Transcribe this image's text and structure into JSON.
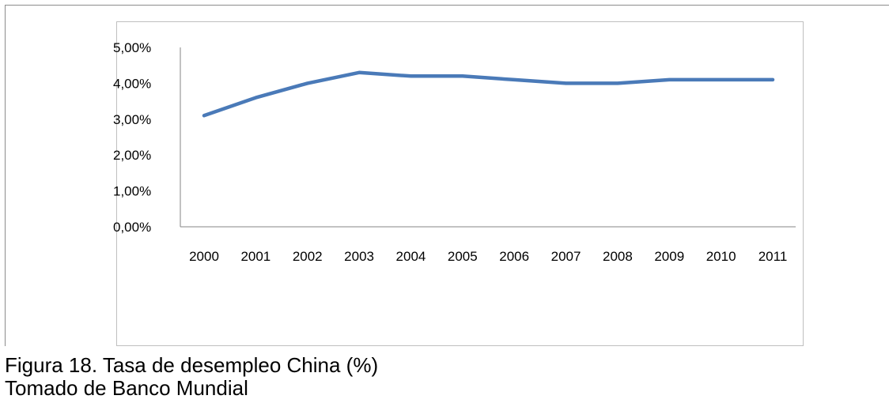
{
  "chart_data": {
    "type": "line",
    "categories": [
      "2000",
      "2001",
      "2002",
      "2003",
      "2004",
      "2005",
      "2006",
      "2007",
      "2008",
      "2009",
      "2010",
      "2011"
    ],
    "series": [
      {
        "values": [
          3.1,
          3.6,
          4.0,
          4.3,
          4.2,
          4.2,
          4.1,
          4.0,
          4.0,
          4.1,
          4.1,
          4.1
        ]
      }
    ],
    "ylim": [
      0,
      5
    ],
    "yticks": [
      "0,00%",
      "1,00%",
      "2,00%",
      "3,00%",
      "4,00%",
      "5,00%"
    ],
    "title": "",
    "xlabel": "",
    "ylabel": "",
    "legend": "none",
    "grid": false,
    "line_color": "#4a7ab8"
  },
  "caption": {
    "figure_label": "Figura 18. Tasa de desempleo China (%)",
    "source": "Tomado de Banco Mundial"
  }
}
